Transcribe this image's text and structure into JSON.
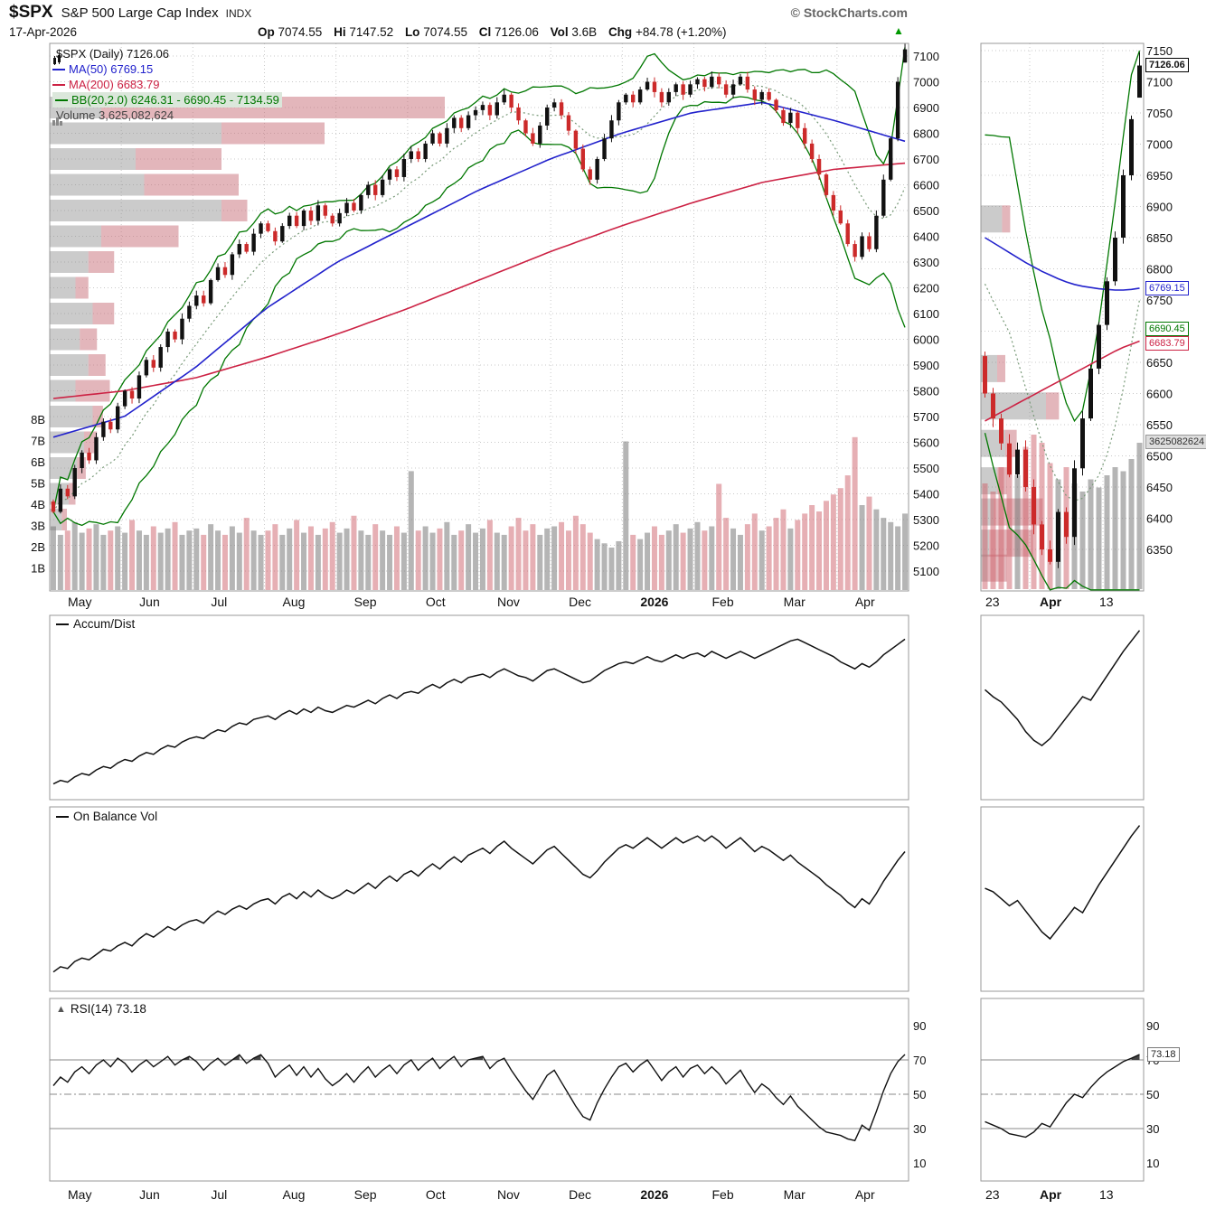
{
  "header": {
    "symbol": "$SPX",
    "name": "S&P 500 Large Cap Index",
    "exchange": "INDX",
    "brand": "© StockCharts.com",
    "date": "17-Apr-2026",
    "quote": {
      "op_label": "Op",
      "op": "7074.55",
      "hi_label": "Hi",
      "hi": "7147.52",
      "lo_label": "Lo",
      "lo": "7074.55",
      "cl_label": "Cl",
      "cl": "7126.06",
      "vol_label": "Vol",
      "vol": "3.6B",
      "chg_label": "Chg",
      "chg": "+84.78 (+1.20%)"
    }
  },
  "legend": {
    "main": "$SPX (Daily) 7126.06",
    "ma50": "MA(50) 6769.15",
    "ma200": "MA(200) 6683.79",
    "bb": "BB(20,2.0) 6246.31 - 6690.45 - 7134.59",
    "volume": "Volume 3,625,082,624"
  },
  "panels": {
    "accum_label": "Accum/Dist",
    "obv_label": "On Balance Vol",
    "rsi_label": "RSI(14) 73.18"
  },
  "price_tags": {
    "close": "7126.06",
    "ma50": "6769.15",
    "bbmid": "6690.45",
    "ma200": "6683.79",
    "volume": "3625082624",
    "rsi": "73.18"
  },
  "colors": {
    "up": "#111111",
    "down": "#cc2a2a",
    "ma50": "#2222cc",
    "ma200": "#cc2244",
    "bb": "#007700",
    "bb_mid": "#779977",
    "vol_up": "rgba(120,120,120,0.55)",
    "vol_down": "rgba(205,95,105,0.5)",
    "vbp_gray": "rgba(140,140,140,0.45)",
    "vbp_pink": "rgba(200,110,120,0.5)",
    "grid": "#c9c9c9",
    "arrow": "#009900"
  },
  "chart_data": {
    "type": "candlestick",
    "title": "$SPX S&P 500 Large Cap Index (Daily) 17-Apr-2026",
    "x_labels": [
      "May",
      "Jun",
      "Jul",
      "Aug",
      "Sep",
      "Oct",
      "Nov",
      "Dec",
      "2026",
      "Feb",
      "Mar",
      "Apr"
    ],
    "mini_x_labels": [
      "23",
      "Apr",
      "13"
    ],
    "y_ticks": [
      7100,
      7000,
      6900,
      6800,
      6700,
      6600,
      6500,
      6400,
      6300,
      6200,
      6100,
      6000,
      5900,
      5800,
      5700,
      5600,
      5500,
      5400,
      5300,
      5200,
      5100
    ],
    "ylim": [
      5023,
      7149
    ],
    "volume_ticks": [
      "8B",
      "7B",
      "6B",
      "5B",
      "4B",
      "3B",
      "2B",
      "1B"
    ],
    "mini_y_ticks": [
      7150,
      7100,
      7050,
      7000,
      6950,
      6900,
      6850,
      6800,
      6750,
      6700,
      6650,
      6600,
      6550,
      6500,
      6450,
      6400,
      6350
    ],
    "mini_ylim": [
      6277,
      7164
    ],
    "rsi_ticks": [
      90,
      70,
      50,
      30,
      10
    ],
    "rsi_ref_lines": [
      70,
      50,
      30
    ],
    "ohlc_summary": {
      "open": 7074.55,
      "high": 7147.52,
      "low": 7074.55,
      "close": 7126.06,
      "volume_b": 3.6,
      "change": "+84.78 (+1.20%)"
    },
    "indicator_values": {
      "ma50": 6769.15,
      "ma200": 6683.79,
      "bb_lower": 6246.31,
      "bb_mid": 6690.45,
      "bb_upper": 7134.59,
      "volume": "3,625,082,624",
      "rsi": 73.18
    },
    "closes": [
      5330,
      5420,
      5390,
      5500,
      5560,
      5530,
      5620,
      5680,
      5650,
      5740,
      5800,
      5770,
      5860,
      5920,
      5890,
      5970,
      6030,
      6000,
      6080,
      6130,
      6170,
      6140,
      6230,
      6280,
      6250,
      6330,
      6370,
      6340,
      6410,
      6450,
      6420,
      6380,
      6440,
      6480,
      6440,
      6500,
      6460,
      6520,
      6480,
      6450,
      6490,
      6530,
      6500,
      6560,
      6600,
      6560,
      6620,
      6660,
      6630,
      6700,
      6730,
      6700,
      6760,
      6800,
      6760,
      6820,
      6860,
      6820,
      6870,
      6890,
      6910,
      6870,
      6920,
      6950,
      6900,
      6850,
      6800,
      6760,
      6830,
      6900,
      6920,
      6870,
      6810,
      6740,
      6660,
      6620,
      6700,
      6780,
      6850,
      6920,
      6950,
      6920,
      6970,
      7000,
      6960,
      6920,
      6960,
      6990,
      6950,
      6990,
      7010,
      6980,
      7020,
      6990,
      6950,
      6990,
      7020,
      6970,
      6930,
      6960,
      6930,
      6890,
      6840,
      6880,
      6820,
      6760,
      6700,
      6640,
      6560,
      6500,
      6450,
      6370,
      6320,
      6400,
      6350,
      6480,
      6620,
      6780,
      7000,
      7126
    ],
    "volumes_b": [
      3.0,
      2.6,
      2.8,
      3.2,
      2.7,
      2.9,
      3.1,
      2.6,
      2.8,
      3.0,
      2.7,
      3.3,
      2.8,
      2.6,
      3.0,
      2.7,
      2.9,
      3.2,
      2.6,
      2.8,
      2.9,
      2.6,
      3.1,
      2.8,
      2.6,
      3.0,
      2.7,
      3.4,
      2.8,
      2.6,
      2.8,
      3.1,
      2.6,
      2.9,
      3.3,
      2.7,
      3.0,
      2.6,
      2.9,
      3.2,
      2.7,
      2.9,
      3.5,
      2.8,
      2.6,
      3.1,
      2.8,
      2.6,
      3.0,
      2.7,
      5.6,
      2.8,
      3.0,
      2.7,
      2.9,
      3.2,
      2.6,
      2.8,
      3.1,
      2.7,
      2.9,
      3.3,
      2.7,
      2.6,
      3.0,
      3.4,
      2.8,
      3.1,
      2.6,
      2.9,
      3.0,
      3.2,
      2.8,
      3.5,
      3.1,
      2.7,
      2.4,
      2.2,
      2.0,
      2.3,
      7.0,
      2.6,
      2.4,
      2.7,
      3.0,
      2.6,
      2.8,
      3.1,
      2.7,
      2.9,
      3.2,
      2.8,
      3.0,
      5.0,
      3.4,
      2.9,
      2.6,
      3.1,
      3.6,
      2.8,
      3.0,
      3.4,
      3.8,
      2.9,
      3.3,
      3.6,
      4.0,
      3.7,
      4.2,
      4.5,
      4.8,
      5.4,
      7.2,
      4.0,
      4.4,
      3.8,
      3.4,
      3.2,
      3.0,
      3.6
    ],
    "ma50_anchors": [
      5620,
      5700,
      5890,
      6120,
      6300,
      6440,
      6580,
      6700,
      6800,
      6880,
      6920,
      6850,
      6769
    ],
    "ma200_anchors": [
      5770,
      5800,
      5850,
      5930,
      6020,
      6120,
      6230,
      6340,
      6440,
      6530,
      6610,
      6660,
      6684
    ],
    "volume_by_price": [
      {
        "p": 6900,
        "g": 0.06,
        "r": 0.4
      },
      {
        "p": 6800,
        "g": 0.2,
        "r": 0.12
      },
      {
        "p": 6700,
        "g": 0.1,
        "r": 0.1
      },
      {
        "p": 6600,
        "g": 0.11,
        "r": 0.11
      },
      {
        "p": 6500,
        "g": 0.2,
        "r": 0.03
      },
      {
        "p": 6400,
        "g": 0.06,
        "r": 0.09
      },
      {
        "p": 6300,
        "g": 0.045,
        "r": 0.03
      },
      {
        "p": 6200,
        "g": 0.03,
        "r": 0.015
      },
      {
        "p": 6100,
        "g": 0.05,
        "r": 0.025
      },
      {
        "p": 6000,
        "g": 0.035,
        "r": 0.02
      },
      {
        "p": 5900,
        "g": 0.045,
        "r": 0.02
      },
      {
        "p": 5800,
        "g": 0.03,
        "r": 0.04
      },
      {
        "p": 5700,
        "g": 0.05,
        "r": 0.012
      },
      {
        "p": 5600,
        "g": 0.04,
        "r": 0.015
      },
      {
        "p": 5500,
        "g": 0.032,
        "r": 0.01
      },
      {
        "p": 5400,
        "g": 0.022,
        "r": 0.008
      },
      {
        "p": 5300,
        "g": 0.014,
        "r": 0.006
      }
    ],
    "accum_dist": [
      8,
      10,
      9,
      12,
      14,
      13,
      16,
      18,
      17,
      20,
      22,
      21,
      24,
      26,
      25,
      28,
      30,
      29,
      32,
      34,
      35,
      34,
      37,
      39,
      38,
      41,
      43,
      42,
      45,
      46,
      47,
      45,
      48,
      50,
      48,
      51,
      49,
      52,
      50,
      49,
      51,
      53,
      52,
      54,
      56,
      54,
      57,
      59,
      57,
      60,
      61,
      60,
      63,
      65,
      63,
      66,
      68,
      66,
      69,
      70,
      71,
      69,
      72,
      74,
      72,
      70,
      69,
      67,
      70,
      73,
      74,
      72,
      70,
      68,
      66,
      67,
      70,
      73,
      75,
      77,
      78,
      77,
      79,
      81,
      79,
      78,
      80,
      82,
      80,
      82,
      83,
      81,
      84,
      82,
      80,
      82,
      84,
      82,
      80,
      82,
      84,
      86,
      88,
      90,
      91,
      89,
      87,
      85,
      83,
      81,
      78,
      76,
      74,
      77,
      75,
      78,
      82,
      85,
      88,
      91
    ],
    "obv": [
      10,
      13,
      12,
      16,
      18,
      17,
      20,
      23,
      22,
      25,
      27,
      25,
      29,
      32,
      30,
      33,
      36,
      34,
      37,
      39,
      40,
      38,
      42,
      45,
      43,
      46,
      48,
      46,
      49,
      51,
      52,
      49,
      53,
      55,
      52,
      56,
      53,
      57,
      54,
      52,
      54,
      57,
      55,
      58,
      61,
      58,
      62,
      65,
      62,
      66,
      68,
      65,
      69,
      72,
      69,
      73,
      76,
      73,
      77,
      79,
      81,
      78,
      82,
      85,
      81,
      78,
      75,
      72,
      76,
      80,
      82,
      78,
      74,
      70,
      66,
      64,
      68,
      73,
      77,
      81,
      83,
      81,
      84,
      87,
      84,
      81,
      84,
      87,
      84,
      86,
      88,
      85,
      88,
      85,
      81,
      84,
      87,
      83,
      79,
      82,
      80,
      77,
      74,
      77,
      73,
      70,
      67,
      64,
      60,
      57,
      54,
      50,
      47,
      52,
      49,
      55,
      62,
      68,
      74,
      79
    ],
    "rsi": [
      55,
      60,
      57,
      63,
      66,
      62,
      67,
      70,
      66,
      71,
      68,
      63,
      67,
      70,
      66,
      69,
      72,
      67,
      70,
      72,
      69,
      64,
      68,
      71,
      67,
      70,
      73,
      68,
      71,
      73,
      68,
      60,
      64,
      67,
      61,
      66,
      60,
      65,
      59,
      55,
      58,
      62,
      57,
      62,
      66,
      60,
      64,
      67,
      62,
      67,
      70,
      64,
      68,
      71,
      65,
      69,
      72,
      66,
      70,
      71,
      72,
      65,
      69,
      71,
      64,
      58,
      52,
      47,
      54,
      61,
      64,
      57,
      50,
      43,
      37,
      35,
      45,
      53,
      60,
      66,
      68,
      63,
      67,
      70,
      64,
      58,
      63,
      66,
      60,
      65,
      67,
      62,
      66,
      62,
      56,
      60,
      64,
      57,
      51,
      56,
      53,
      48,
      44,
      49,
      43,
      39,
      35,
      31,
      28,
      27,
      26,
      24,
      23,
      32,
      29,
      40,
      52,
      62,
      69,
      73.18
    ],
    "mini": {
      "context": [
        6950,
        6900,
        6840,
        6780,
        6700,
        6660
      ],
      "closes": [
        6600,
        6560,
        6520,
        6470,
        6510,
        6450,
        6390,
        6350,
        6330,
        6410,
        6370,
        6480,
        6560,
        6640,
        6710,
        6780,
        6850,
        6950,
        7040,
        7126
      ],
      "volumes_b": [
        2.6,
        2.4,
        3.0,
        3.3,
        2.8,
        3.5,
        3.8,
        3.6,
        3.1,
        2.7,
        3.0,
        2.6,
        2.4,
        2.7,
        2.5,
        2.8,
        3.0,
        2.9,
        3.2,
        3.6
      ],
      "ma50": [
        6850,
        6842,
        6834,
        6826,
        6818,
        6810,
        6803,
        6796,
        6790,
        6784,
        6779,
        6775,
        6772,
        6770,
        6768,
        6767,
        6766,
        6766,
        6767,
        6769
      ],
      "ma200": [
        6556,
        6563,
        6570,
        6577,
        6584,
        6591,
        6598,
        6605,
        6612,
        6619,
        6626,
        6633,
        6640,
        6647,
        6654,
        6661,
        6668,
        6674,
        6679,
        6684
      ],
      "accum": [
        62,
        58,
        55,
        50,
        45,
        38,
        33,
        30,
        34,
        40,
        46,
        52,
        58,
        56,
        63,
        70,
        77,
        84,
        90,
        96
      ],
      "obv": [
        58,
        56,
        52,
        48,
        51,
        45,
        39,
        33,
        29,
        35,
        41,
        47,
        44,
        52,
        60,
        67,
        74,
        81,
        88,
        94
      ],
      "rsi": [
        34,
        32,
        30,
        27,
        26,
        25,
        28,
        33,
        31,
        38,
        45,
        50,
        48,
        54,
        59,
        63,
        66,
        69,
        71,
        73.18
      ],
      "vbp": [
        {
          "p": 6880,
          "g": 0.13,
          "r": 0.05
        },
        {
          "p": 6640,
          "g": 0.1,
          "r": 0.05
        },
        {
          "p": 6580,
          "g": 0.4,
          "r": 0.08
        },
        {
          "p": 6520,
          "g": 0.15,
          "r": 0.07
        },
        {
          "p": 6460,
          "g": 0.1,
          "r": 0.06
        },
        {
          "p": 6410,
          "g": 0.08,
          "r": 0.3
        },
        {
          "p": 6360,
          "g": 0.05,
          "r": 0.27
        },
        {
          "p": 6320,
          "g": 0.04,
          "r": 0.12
        }
      ]
    }
  }
}
